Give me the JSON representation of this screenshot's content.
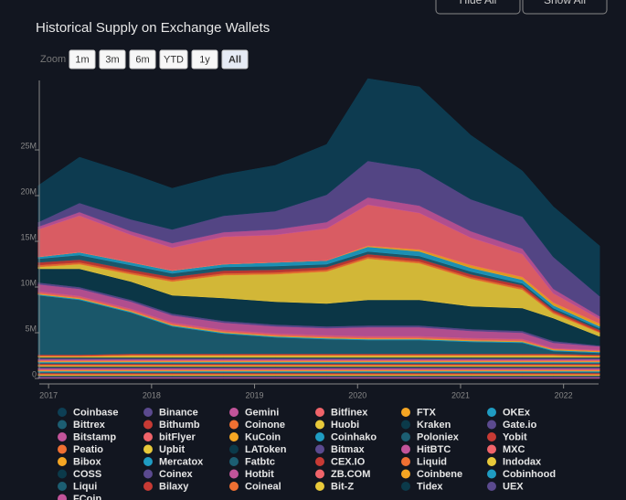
{
  "chart_data": {
    "type": "stacked-area",
    "title": "Historical Supply on Exchange Wallets",
    "zoom_label": "Zoom",
    "zoom_buttons": [
      "1m",
      "3m",
      "6m",
      "YTD",
      "1y",
      "All"
    ],
    "buttons": [
      "Hide All",
      "Show All"
    ],
    "x": [
      2016.9,
      2017.3,
      2017.8,
      2018.2,
      2018.7,
      2019.2,
      2019.7,
      2020.1,
      2020.6,
      2021.1,
      2021.6,
      2021.9,
      2022.35
    ],
    "xlim": [
      2016.91,
      2022.34
    ],
    "xticks": [
      2017,
      2018,
      2019,
      2020,
      2021,
      2022
    ],
    "ylim": [
      0,
      32.6
    ],
    "yticks": [
      0,
      {
        "value": 5,
        "label": "5M"
      },
      {
        "value": 10,
        "label": "10M"
      },
      {
        "value": 15,
        "label": "15M"
      },
      {
        "value": 20,
        "label": "20M"
      },
      {
        "value": 25,
        "label": "25M"
      }
    ],
    "series": [
      {
        "name": "Coinbase",
        "color": "#0d3f55",
        "values": [
          4,
          5,
          5,
          4.5,
          4.5,
          5,
          5.5,
          9,
          9,
          7,
          5,
          5.5,
          5.5
        ]
      },
      {
        "name": "Binance",
        "color": "#5b4a8f",
        "values": [
          0.5,
          1,
          1.3,
          1.5,
          1.8,
          2,
          3,
          4,
          4,
          3.5,
          3.5,
          3.5,
          2.2
        ]
      },
      {
        "name": "Gemini",
        "color": "#c2549a",
        "values": [
          0.3,
          0.4,
          0.4,
          0.5,
          0.5,
          0.6,
          0.7,
          0.8,
          0.8,
          0.7,
          0.6,
          0.5,
          0.3
        ]
      },
      {
        "name": "Bitfinex",
        "color": "#f0646a",
        "values": [
          3,
          4,
          3,
          2.5,
          3,
          3,
          3.5,
          4.5,
          4,
          3,
          2.5,
          1,
          0.5
        ]
      },
      {
        "name": "FTX",
        "color": "#f5a623",
        "values": [
          0,
          0,
          0,
          0,
          0,
          0,
          0,
          0.1,
          0.2,
          0.3,
          0.3,
          0.3,
          0.3
        ]
      },
      {
        "name": "OKEx",
        "color": "#1f9cc2",
        "values": [
          0.2,
          0.3,
          0.3,
          0.3,
          0.3,
          0.4,
          0.4,
          0.5,
          0.5,
          0.4,
          0.4,
          0.3,
          0.2
        ]
      },
      {
        "name": "Bittrex",
        "color": "#1c5e72",
        "values": [
          0.4,
          0.5,
          0.5,
          0.4,
          0.4,
          0.4,
          0.3,
          0.3,
          0.3,
          0.3,
          0.2,
          0.2,
          0.2
        ]
      },
      {
        "name": "Bithumb",
        "color": "#c73a34",
        "values": [
          0.3,
          0.3,
          0.3,
          0.3,
          0.3,
          0.3,
          0.3,
          0.3,
          0.3,
          0.3,
          0.3,
          0.2,
          0.2
        ]
      },
      {
        "name": "Coinone",
        "color": "#f07032",
        "values": [
          0.2,
          0.2,
          0.2,
          0.2,
          0.2,
          0.2,
          0.2,
          0.2,
          0.2,
          0.2,
          0.2,
          0.2,
          0.1
        ]
      },
      {
        "name": "Huobi",
        "color": "#e8c93a",
        "values": [
          0.2,
          0.5,
          0.8,
          1.5,
          2.5,
          3,
          3.5,
          4.5,
          4,
          3,
          2,
          0.5,
          0.4
        ]
      },
      {
        "name": "Kraken",
        "color": "#0b3a4a",
        "values": [
          1.5,
          2,
          2,
          2,
          2.5,
          2.5,
          2.5,
          2.8,
          2.8,
          2.5,
          2.5,
          2.5,
          1
        ]
      },
      {
        "name": "Gate.io",
        "color": "#5b4a8f",
        "values": [
          0.2,
          0.2,
          0.2,
          0.2,
          0.2,
          0.2,
          0.2,
          0.2,
          0.2,
          0.2,
          0.2,
          0.2,
          0.1
        ]
      },
      {
        "name": "Bitstamp",
        "color": "#c2549a",
        "values": [
          0.8,
          0.8,
          0.8,
          0.8,
          0.8,
          0.8,
          0.8,
          1,
          1,
          0.8,
          0.7,
          0.6,
          0.4
        ]
      },
      {
        "name": "bitFlyer",
        "color": "#f0646a",
        "values": [
          0.2,
          0.2,
          0.2,
          0.2,
          0.2,
          0.2,
          0.2,
          0.2,
          0.2,
          0.2,
          0.2,
          0.1,
          0.1
        ]
      },
      {
        "name": "KuCoin",
        "color": "#f5a623",
        "values": [
          0.1,
          0.1,
          0.1,
          0.1,
          0.1,
          0.1,
          0.1,
          0.1,
          0.1,
          0.1,
          0.1,
          0.1,
          0.1
        ]
      },
      {
        "name": "Coinhako",
        "color": "#1f9cc2",
        "values": [
          0.1,
          0.1,
          0.1,
          0.1,
          0.1,
          0.1,
          0.1,
          0.1,
          0.1,
          0.1,
          0.1,
          0.1,
          0.1
        ]
      },
      {
        "name": "Poloniex",
        "color": "#1c5e72",
        "values": [
          6.5,
          6,
          4.5,
          3,
          2.2,
          1.8,
          1.6,
          1.5,
          1.5,
          1.3,
          1.2,
          0.3,
          0.2
        ]
      },
      {
        "name": "Yobit",
        "color": "#c73a34",
        "values": [
          0.1,
          0.1,
          0.1,
          0.1,
          0.1,
          0.1,
          0.1,
          0.1,
          0.1,
          0.1,
          0.1,
          0.1,
          0.1
        ]
      },
      {
        "name": "Peatio",
        "color": "#f07032",
        "values": [
          0.1,
          0.1,
          0.1,
          0.1,
          0.1,
          0.1,
          0.1,
          0.1,
          0.1,
          0.1,
          0.1,
          0.1,
          0.1
        ]
      },
      {
        "name": "Upbit",
        "color": "#e8c93a",
        "values": [
          0.1,
          0.1,
          0.2,
          0.2,
          0.2,
          0.2,
          0.2,
          0.2,
          0.2,
          0.2,
          0.2,
          0.2,
          0.1
        ]
      },
      {
        "name": "LAToken",
        "color": "#0b3a4a",
        "values": [
          0.1,
          0.1,
          0.1,
          0.1,
          0.1,
          0.1,
          0.1,
          0.1,
          0.1,
          0.1,
          0.1,
          0.1,
          0.1
        ]
      },
      {
        "name": "Bitmax",
        "color": "#5b4a8f",
        "values": [
          0.1,
          0.1,
          0.1,
          0.1,
          0.1,
          0.1,
          0.1,
          0.1,
          0.1,
          0.1,
          0.1,
          0.1,
          0.1
        ]
      },
      {
        "name": "HitBTC",
        "color": "#c2549a",
        "values": [
          0.1,
          0.1,
          0.1,
          0.1,
          0.1,
          0.1,
          0.1,
          0.1,
          0.1,
          0.1,
          0.1,
          0.1,
          0.1
        ]
      },
      {
        "name": "MXC",
        "color": "#f0646a",
        "values": [
          0.1,
          0.1,
          0.1,
          0.1,
          0.1,
          0.1,
          0.1,
          0.1,
          0.1,
          0.1,
          0.1,
          0.1,
          0.1
        ]
      },
      {
        "name": "Bibox",
        "color": "#f5a623",
        "values": [
          0.1,
          0.1,
          0.1,
          0.1,
          0.1,
          0.1,
          0.1,
          0.1,
          0.1,
          0.1,
          0.1,
          0.1,
          0.1
        ]
      },
      {
        "name": "Mercatox",
        "color": "#1f9cc2",
        "values": [
          0.1,
          0.1,
          0.1,
          0.1,
          0.1,
          0.1,
          0.1,
          0.1,
          0.1,
          0.1,
          0.1,
          0.1,
          0.1
        ]
      },
      {
        "name": "Fatbtc",
        "color": "#1c5e72",
        "values": [
          0.1,
          0.1,
          0.1,
          0.1,
          0.1,
          0.1,
          0.1,
          0.1,
          0.1,
          0.1,
          0.1,
          0.1,
          0.1
        ]
      },
      {
        "name": "CEX.IO",
        "color": "#c73a34",
        "values": [
          0.1,
          0.1,
          0.1,
          0.1,
          0.1,
          0.1,
          0.1,
          0.1,
          0.1,
          0.1,
          0.1,
          0.1,
          0.1
        ]
      },
      {
        "name": "Liquid",
        "color": "#f07032",
        "values": [
          0.1,
          0.1,
          0.1,
          0.1,
          0.1,
          0.1,
          0.1,
          0.1,
          0.1,
          0.1,
          0.1,
          0.1,
          0.1
        ]
      },
      {
        "name": "Indodax",
        "color": "#e8c93a",
        "values": [
          0.1,
          0.1,
          0.1,
          0.1,
          0.1,
          0.1,
          0.1,
          0.1,
          0.1,
          0.1,
          0.1,
          0.1,
          0.1
        ]
      },
      {
        "name": "COSS",
        "color": "#0b3a4a",
        "values": [
          0.1,
          0.1,
          0.1,
          0.1,
          0.1,
          0.1,
          0.1,
          0.1,
          0.1,
          0.1,
          0.1,
          0.1,
          0.1
        ]
      },
      {
        "name": "Coinex",
        "color": "#5b4a8f",
        "values": [
          0.1,
          0.1,
          0.1,
          0.1,
          0.1,
          0.1,
          0.1,
          0.1,
          0.1,
          0.1,
          0.1,
          0.1,
          0.1
        ]
      },
      {
        "name": "Hotbit",
        "color": "#c2549a",
        "values": [
          0.1,
          0.1,
          0.1,
          0.1,
          0.1,
          0.1,
          0.1,
          0.1,
          0.1,
          0.1,
          0.1,
          0.1,
          0.1
        ]
      },
      {
        "name": "ZB.COM",
        "color": "#f0646a",
        "values": [
          0.1,
          0.1,
          0.1,
          0.1,
          0.1,
          0.1,
          0.1,
          0.1,
          0.1,
          0.1,
          0.1,
          0.1,
          0.1
        ]
      },
      {
        "name": "Coinbene",
        "color": "#f5a623",
        "values": [
          0.1,
          0.1,
          0.1,
          0.1,
          0.1,
          0.1,
          0.1,
          0.1,
          0.1,
          0.1,
          0.1,
          0.1,
          0.1
        ]
      },
      {
        "name": "Cobinhood",
        "color": "#1f9cc2",
        "values": [
          0.1,
          0.1,
          0.1,
          0.1,
          0.1,
          0.1,
          0.1,
          0.1,
          0.1,
          0.1,
          0.1,
          0.1,
          0.1
        ]
      },
      {
        "name": "Liqui",
        "color": "#1c5e72",
        "values": [
          0.1,
          0.1,
          0.1,
          0.1,
          0.1,
          0.1,
          0.1,
          0.1,
          0.1,
          0.1,
          0.1,
          0.1,
          0.1
        ]
      },
      {
        "name": "Bilaxy",
        "color": "#c73a34",
        "values": [
          0.1,
          0.1,
          0.1,
          0.1,
          0.1,
          0.1,
          0.1,
          0.1,
          0.1,
          0.1,
          0.1,
          0.1,
          0.1
        ]
      },
      {
        "name": "Coineal",
        "color": "#f07032",
        "values": [
          0.1,
          0.1,
          0.1,
          0.1,
          0.1,
          0.1,
          0.1,
          0.1,
          0.1,
          0.1,
          0.1,
          0.1,
          0.1
        ]
      },
      {
        "name": "Bit-Z",
        "color": "#e8c93a",
        "values": [
          0.1,
          0.1,
          0.1,
          0.1,
          0.1,
          0.1,
          0.1,
          0.1,
          0.1,
          0.1,
          0.1,
          0.1,
          0.1
        ]
      },
      {
        "name": "Tidex",
        "color": "#0b3a4a",
        "values": [
          0.1,
          0.1,
          0.1,
          0.1,
          0.1,
          0.1,
          0.1,
          0.1,
          0.1,
          0.1,
          0.1,
          0.1,
          0.1
        ]
      },
      {
        "name": "UEX",
        "color": "#5b4a8f",
        "values": [
          0.1,
          0.1,
          0.1,
          0.1,
          0.1,
          0.1,
          0.1,
          0.1,
          0.1,
          0.1,
          0.1,
          0.1,
          0.1
        ]
      },
      {
        "name": "FCoin",
        "color": "#c2549a",
        "values": [
          0.1,
          0.1,
          0.1,
          0.1,
          0.1,
          0.1,
          0.1,
          0.1,
          0.1,
          0.1,
          0.1,
          0.1,
          0.1
        ]
      }
    ]
  }
}
